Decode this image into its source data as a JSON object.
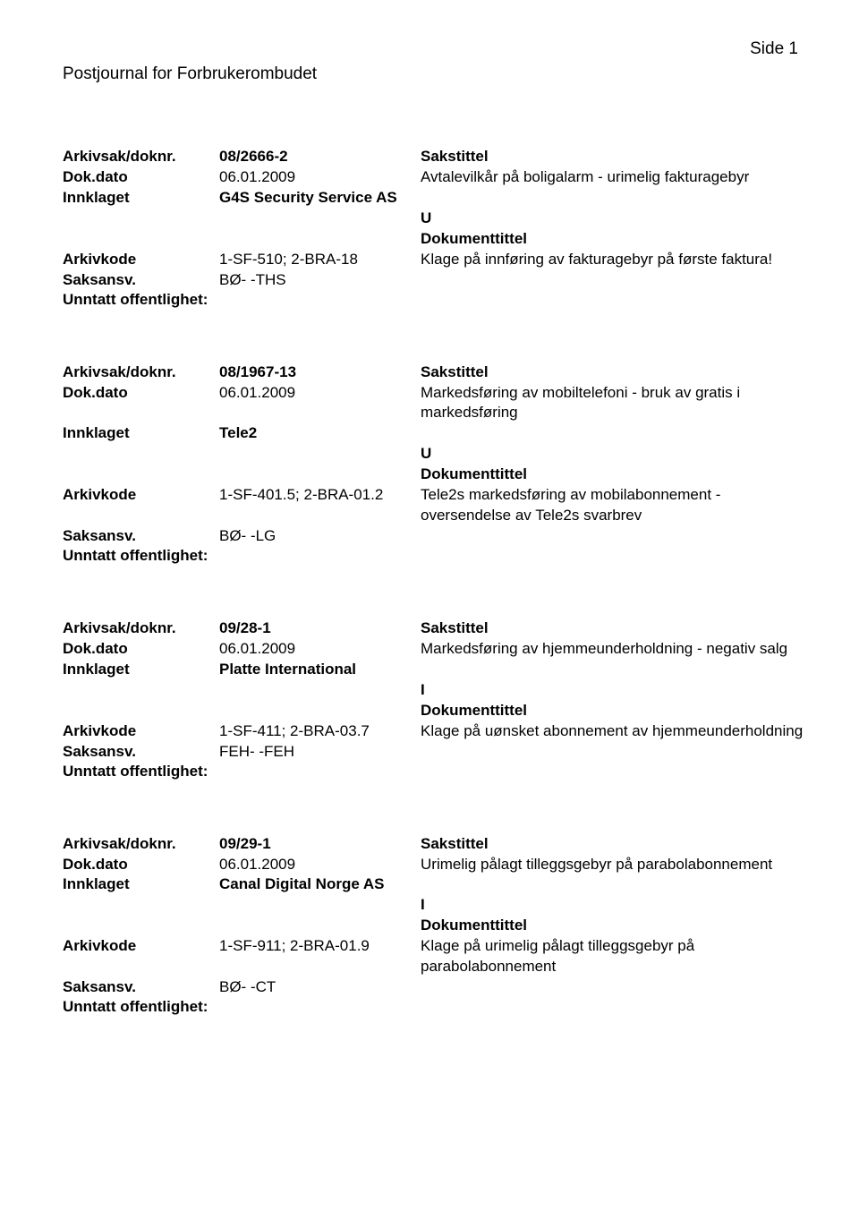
{
  "page_number": "Side 1",
  "journal_title": "Postjournal for Forbrukerombudet",
  "labels": {
    "arkivsak": "Arkivsak/doknr.",
    "dokdato": "Dok.dato",
    "innklaget": "Innklaget",
    "arkivkode": "Arkivkode",
    "saksansv": "Saksansv.",
    "unntatt": "Unntatt offentlighet:",
    "sakstittel": "Sakstittel",
    "dokumenttittel": "Dokumenttittel"
  },
  "entries": [
    {
      "arkivsak": "08/2666-2",
      "dokdato": "06.01.2009",
      "sakstittel_text": "Avtalevilkår på boligalarm - urimelig fakturagebyr",
      "innklaget": "G4S Security Service AS",
      "doc_type": "U",
      "arkivkode": "1-SF-510; 2-BRA-18",
      "dokumenttittel_text": "Klage på innføring av fakturagebyr på første faktura!",
      "saksansv": "BØ- -THS"
    },
    {
      "arkivsak": "08/1967-13",
      "dokdato": "06.01.2009",
      "sakstittel_text": "Markedsføring av mobiltelefoni - bruk av gratis i markedsføring",
      "innklaget": "Tele2",
      "doc_type": "U",
      "arkivkode": "1-SF-401.5; 2-BRA-01.2",
      "dokumenttittel_text": "Tele2s markedsføring av mobilabonnement - oversendelse av Tele2s svarbrev",
      "saksansv": "BØ- -LG"
    },
    {
      "arkivsak": "09/28-1",
      "dokdato": "06.01.2009",
      "sakstittel_text": "Markedsføring av hjemmeunderholdning - negativ salg",
      "innklaget": "Platte International",
      "doc_type": "I",
      "arkivkode": "1-SF-411; 2-BRA-03.7",
      "dokumenttittel_text": "Klage på uønsket abonnement av hjemmeunderholdning",
      "saksansv": "FEH- -FEH"
    },
    {
      "arkivsak": "09/29-1",
      "dokdato": "06.01.2009",
      "sakstittel_text": "Urimelig pålagt tilleggsgebyr på parabolabonnement",
      "innklaget": "Canal Digital Norge AS",
      "doc_type": "I",
      "arkivkode": "1-SF-911; 2-BRA-01.9",
      "dokumenttittel_text": "Klage på urimelig pålagt tilleggsgebyr på parabolabonnement",
      "saksansv": "BØ- -CT"
    }
  ]
}
